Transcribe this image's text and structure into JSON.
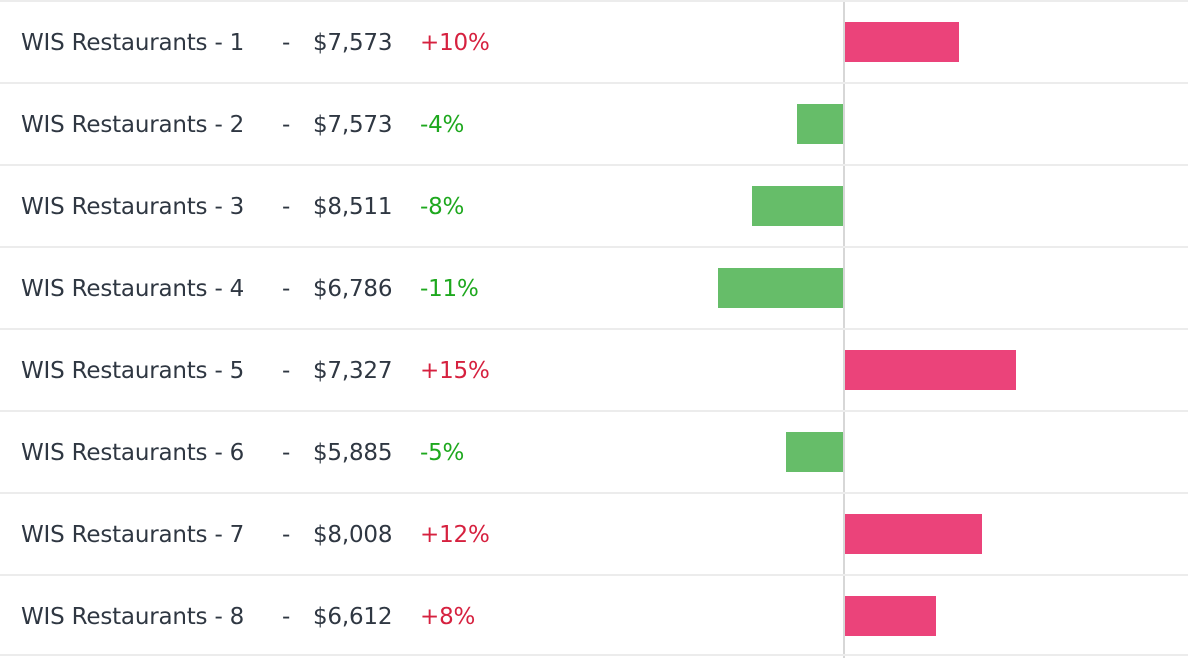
{
  "rows": [
    {
      "name": "WIS Restaurants - 1",
      "separator": "-",
      "amount": "$7,573",
      "change": "+10%",
      "change_value": 10,
      "direction": "up"
    },
    {
      "name": "WIS Restaurants - 2",
      "separator": "-",
      "amount": "$7,573",
      "change": "-4%",
      "change_value": -4,
      "direction": "down"
    },
    {
      "name": "WIS Restaurants - 3",
      "separator": "-",
      "amount": "$8,511",
      "change": "-8%",
      "change_value": -8,
      "direction": "down"
    },
    {
      "name": "WIS Restaurants - 4",
      "separator": "-",
      "amount": "$6,786",
      "change": "-11%",
      "change_value": -11,
      "direction": "down"
    },
    {
      "name": "WIS Restaurants - 5",
      "separator": "-",
      "amount": "$7,327",
      "change": "+15%",
      "change_value": 15,
      "direction": "up"
    },
    {
      "name": "WIS Restaurants - 6",
      "separator": "-",
      "amount": "$5,885",
      "change": "-5%",
      "change_value": -5,
      "direction": "down"
    },
    {
      "name": "WIS Restaurants - 7",
      "separator": "-",
      "amount": "$8,008",
      "change": "+12%",
      "change_value": 12,
      "direction": "up"
    },
    {
      "name": "WIS Restaurants - 8",
      "separator": "-",
      "amount": "$6,612",
      "change": "+8%",
      "change_value": 8,
      "direction": "up"
    }
  ],
  "colors": {
    "increase_bar": "#eb437a",
    "decrease_bar": "#66bd69",
    "increase_text": "#d6213f",
    "decrease_text": "#1ea81e"
  }
}
